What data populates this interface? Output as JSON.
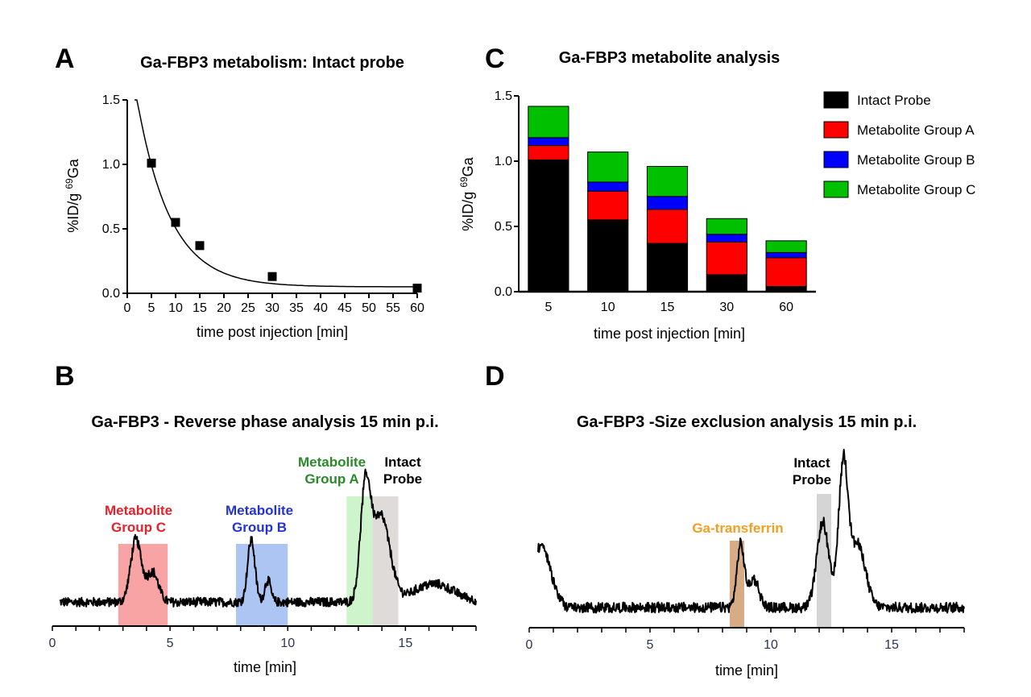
{
  "chart_data": [
    {
      "panel": "A",
      "type": "scatter",
      "title": "Ga-FBP3 metabolism: Intact probe",
      "xlabel": "time post injection [min]",
      "ylabel_prefix": "%ID/g ",
      "ylabel_sup": "69",
      "ylabel_suffix": "Ga",
      "xlim": [
        0,
        60
      ],
      "ylim": [
        0,
        1.5
      ],
      "xticks": [
        0,
        5,
        10,
        15,
        20,
        25,
        30,
        35,
        40,
        45,
        50,
        55,
        60
      ],
      "yticks": [
        0.0,
        0.5,
        1.0,
        1.5
      ],
      "ytick_labels": [
        "0.0",
        "0.5",
        "1.0",
        "1.5"
      ],
      "x": [
        5,
        10,
        15,
        30,
        60
      ],
      "y": [
        1.01,
        0.55,
        0.37,
        0.13,
        0.04
      ],
      "fit": {
        "type": "exponential_decay",
        "plateau": 0.05,
        "y0": 2.0,
        "k": 0.145,
        "x_start": 1.5,
        "x_end": 60
      }
    },
    {
      "panel": "C",
      "type": "bar",
      "stacked": true,
      "title": "Ga-FBP3 metabolite analysis",
      "xlabel": "time post injection [min]",
      "ylabel_prefix": "%ID/g ",
      "ylabel_sup": "69",
      "ylabel_suffix": "Ga",
      "ylim": [
        0,
        1.5
      ],
      "yticks": [
        0.0,
        0.5,
        1.0,
        1.5
      ],
      "ytick_labels": [
        "0.0",
        "0.5",
        "1.0",
        "1.5"
      ],
      "categories": [
        "5",
        "10",
        "15",
        "30",
        "60"
      ],
      "series": [
        {
          "name": "Intact Probe",
          "color": "#000000",
          "values": [
            1.01,
            0.55,
            0.37,
            0.13,
            0.04
          ]
        },
        {
          "name": "Metabolite Group A",
          "color": "#ff0000",
          "values": [
            0.11,
            0.22,
            0.26,
            0.25,
            0.22
          ]
        },
        {
          "name": "Metabolite Group B",
          "color": "#0000ff",
          "values": [
            0.06,
            0.07,
            0.1,
            0.06,
            0.04
          ]
        },
        {
          "name": "Metabolite Group C",
          "color": "#00c000",
          "values": [
            0.24,
            0.23,
            0.23,
            0.12,
            0.09
          ]
        }
      ],
      "legend": "right"
    },
    {
      "panel": "B",
      "type": "line",
      "title": "Ga-FBP3 - Reverse phase analysis 15 min p.i.",
      "xlabel": "time [min]",
      "xlim": [
        0,
        18
      ],
      "xticks": [
        0,
        5,
        10,
        15
      ],
      "regions": [
        {
          "label_lines": [
            "Metabolite",
            "Group C"
          ],
          "x0": 2.8,
          "x1": 4.9,
          "fill": "#f89a9a",
          "text_color": "#e8202a"
        },
        {
          "label_lines": [
            "Metabolite",
            "Group B"
          ],
          "x0": 7.8,
          "x1": 10.0,
          "fill": "#a4bff2",
          "text_color": "#2433d9"
        },
        {
          "label_lines": [
            "Metabolite",
            "Group A"
          ],
          "x0": 12.5,
          "x1": 13.6,
          "fill": "#c8f3c4",
          "text_color": "#2a8a2a"
        },
        {
          "label_lines": [
            "Intact",
            "Probe"
          ],
          "x0": 13.6,
          "x1": 14.7,
          "fill": "#dcd7d5",
          "text_color": "#000000"
        }
      ],
      "peaks": [
        {
          "center": 3.55,
          "height": 0.62,
          "width": 0.32
        },
        {
          "center": 4.25,
          "height": 0.3,
          "width": 0.35
        },
        {
          "center": 8.45,
          "height": 0.62,
          "width": 0.22
        },
        {
          "center": 9.15,
          "height": 0.22,
          "width": 0.18
        },
        {
          "center": 13.3,
          "height": 1.05,
          "width": 0.3
        },
        {
          "center": 13.95,
          "height": 0.85,
          "width": 0.55
        },
        {
          "center": 16.2,
          "height": 0.18,
          "width": 1.2
        }
      ],
      "baseline": 0.15
    },
    {
      "panel": "D",
      "type": "line",
      "title": "Ga-FBP3 -Size exclusion analysis 15 min p.i.",
      "xlabel": "time [min]",
      "xlim": [
        0,
        18
      ],
      "xticks": [
        0,
        5,
        10,
        15
      ],
      "regions": [
        {
          "label_lines": [
            "Ga-transferrin"
          ],
          "x0": 8.3,
          "x1": 8.9,
          "fill": "#d4a27a",
          "text_color": "#f0a020"
        },
        {
          "label_lines": [
            "Intact",
            "Probe"
          ],
          "x0": 11.9,
          "x1": 12.5,
          "fill": "#d0d0d0",
          "text_color": "#000000"
        }
      ],
      "peaks": [
        {
          "center": 0.5,
          "height": 0.55,
          "width": 0.55
        },
        {
          "center": 8.75,
          "height": 0.55,
          "width": 0.22
        },
        {
          "center": 9.3,
          "height": 0.25,
          "width": 0.3
        },
        {
          "center": 12.15,
          "height": 0.75,
          "width": 0.35
        },
        {
          "center": 13.0,
          "height": 1.25,
          "width": 0.28
        },
        {
          "center": 13.6,
          "height": 0.55,
          "width": 0.45
        }
      ],
      "baseline": 0.1
    }
  ],
  "panel_labels": {
    "a": "A",
    "b": "B",
    "c": "C",
    "d": "D"
  }
}
